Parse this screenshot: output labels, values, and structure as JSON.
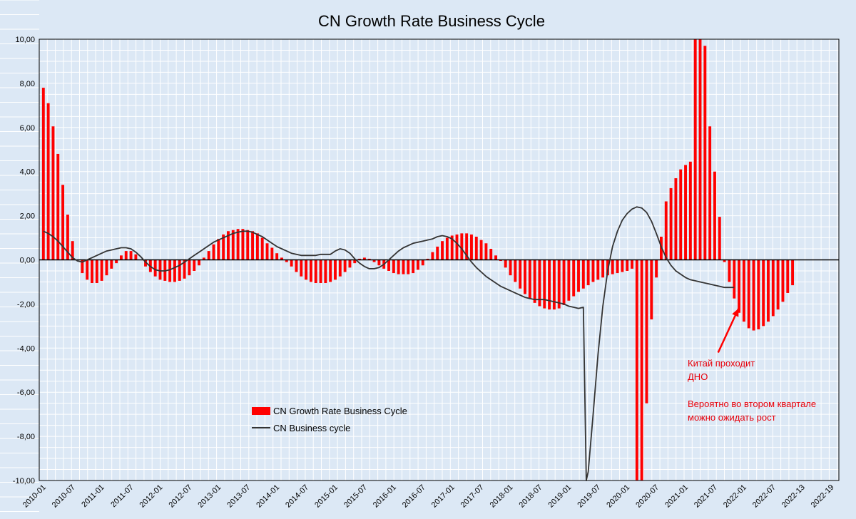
{
  "chart_data": {
    "type": "bar",
    "title": "CN Growth Rate Business Cycle",
    "xlabel": "",
    "ylabel": "",
    "ylim": [
      -10,
      10
    ],
    "yticks": [
      10,
      8,
      6,
      4,
      2,
      0,
      -2,
      -4,
      -6,
      -8,
      -10
    ],
    "ytick_labels": [
      "10,00",
      "8,00",
      "6,00",
      "4,00",
      "2,00",
      "0,00",
      "-2,00",
      "-4,00",
      "-6,00",
      "-8,00",
      "-10,00"
    ],
    "grid": true,
    "x_tick_labels": [
      "2010-01",
      "2010-07",
      "2011-01",
      "2011-07",
      "2012-01",
      "2012-07",
      "2013-01",
      "2013-07",
      "2014-01",
      "2014-07",
      "2015-01",
      "2015-07",
      "2016-01",
      "2016-07",
      "2017-01",
      "2017-07",
      "2018-01",
      "2018-07",
      "2019-01",
      "2019-07",
      "2020-01",
      "2020-07",
      "2021-01",
      "2021-07",
      "2022-01",
      "2022-07",
      "2022-13",
      "2022-19"
    ],
    "series": [
      {
        "name": "CN Growth Rate Business Cycle",
        "kind": "bar",
        "color": "#ff0000",
        "values": [
          7.8,
          7.1,
          6.05,
          4.8,
          3.4,
          2.05,
          0.85,
          0.0,
          -0.6,
          -0.9,
          -1.05,
          -1.05,
          -0.95,
          -0.7,
          -0.4,
          -0.15,
          0.2,
          0.4,
          0.4,
          0.25,
          0.0,
          -0.3,
          -0.55,
          -0.75,
          -0.9,
          -0.95,
          -1.0,
          -1.0,
          -0.95,
          -0.85,
          -0.7,
          -0.5,
          -0.25,
          0.1,
          0.4,
          0.7,
          0.95,
          1.15,
          1.3,
          1.35,
          1.4,
          1.4,
          1.35,
          1.3,
          1.2,
          1.0,
          0.75,
          0.55,
          0.3,
          0.1,
          -0.1,
          -0.3,
          -0.55,
          -0.75,
          -0.9,
          -1.0,
          -1.05,
          -1.05,
          -1.05,
          -1.0,
          -0.9,
          -0.75,
          -0.55,
          -0.35,
          -0.15,
          0.05,
          0.1,
          0.05,
          -0.1,
          -0.25,
          -0.4,
          -0.5,
          -0.6,
          -0.65,
          -0.65,
          -0.65,
          -0.6,
          -0.45,
          -0.25,
          0.05,
          0.35,
          0.6,
          0.85,
          1.0,
          1.1,
          1.15,
          1.2,
          1.2,
          1.15,
          1.05,
          0.9,
          0.75,
          0.5,
          0.2,
          -0.05,
          -0.35,
          -0.7,
          -1.0,
          -1.3,
          -1.55,
          -1.75,
          -1.95,
          -2.1,
          -2.2,
          -2.25,
          -2.25,
          -2.2,
          -2.05,
          -1.85,
          -1.65,
          -1.45,
          -1.3,
          -1.15,
          -1.0,
          -0.9,
          -0.8,
          -0.7,
          -0.65,
          -0.6,
          -0.55,
          -0.5,
          -0.4,
          -10.0,
          -10.0,
          -6.5,
          -2.7,
          -0.8,
          1.05,
          2.65,
          3.25,
          3.7,
          4.1,
          4.3,
          4.45,
          10.0,
          10.0,
          9.7,
          6.05,
          4.0,
          1.95,
          -0.1,
          -1.0,
          -1.75,
          -2.4,
          -2.8,
          -3.1,
          -3.2,
          -3.15,
          -3.0,
          -2.8,
          -2.55,
          -2.25,
          -1.9,
          -1.5,
          -1.15
        ],
        "categories_start": "2010-01",
        "step": "month"
      },
      {
        "name": "CN Business cycle",
        "kind": "line",
        "color": "#333333",
        "points": [
          [
            0,
            1.3
          ],
          [
            1,
            1.2
          ],
          [
            2,
            1.05
          ],
          [
            3,
            0.85
          ],
          [
            4,
            0.6
          ],
          [
            5,
            0.35
          ],
          [
            6,
            0.1
          ],
          [
            7,
            -0.05
          ],
          [
            8,
            -0.1
          ],
          [
            9,
            0.0
          ],
          [
            10,
            0.1
          ],
          [
            11,
            0.2
          ],
          [
            12,
            0.3
          ],
          [
            13,
            0.4
          ],
          [
            14,
            0.45
          ],
          [
            15,
            0.5
          ],
          [
            16,
            0.55
          ],
          [
            17,
            0.55
          ],
          [
            18,
            0.5
          ],
          [
            19,
            0.35
          ],
          [
            20,
            0.15
          ],
          [
            21,
            -0.1
          ],
          [
            22,
            -0.3
          ],
          [
            23,
            -0.45
          ],
          [
            24,
            -0.5
          ],
          [
            25,
            -0.5
          ],
          [
            26,
            -0.45
          ],
          [
            27,
            -0.35
          ],
          [
            28,
            -0.25
          ],
          [
            29,
            -0.1
          ],
          [
            30,
            0.05
          ],
          [
            31,
            0.2
          ],
          [
            32,
            0.35
          ],
          [
            33,
            0.5
          ],
          [
            34,
            0.65
          ],
          [
            35,
            0.8
          ],
          [
            36,
            0.9
          ],
          [
            37,
            1.0
          ],
          [
            38,
            1.1
          ],
          [
            39,
            1.2
          ],
          [
            40,
            1.25
          ],
          [
            41,
            1.3
          ],
          [
            42,
            1.3
          ],
          [
            43,
            1.25
          ],
          [
            44,
            1.15
          ],
          [
            45,
            1.05
          ],
          [
            46,
            0.9
          ],
          [
            47,
            0.75
          ],
          [
            48,
            0.6
          ],
          [
            49,
            0.5
          ],
          [
            50,
            0.4
          ],
          [
            51,
            0.3
          ],
          [
            52,
            0.25
          ],
          [
            53,
            0.2
          ],
          [
            54,
            0.2
          ],
          [
            55,
            0.2
          ],
          [
            56,
            0.2
          ],
          [
            57,
            0.25
          ],
          [
            58,
            0.25
          ],
          [
            59,
            0.25
          ],
          [
            60,
            0.4
          ],
          [
            61,
            0.5
          ],
          [
            62,
            0.45
          ],
          [
            63,
            0.3
          ],
          [
            64,
            0.05
          ],
          [
            65,
            -0.15
          ],
          [
            66,
            -0.3
          ],
          [
            67,
            -0.4
          ],
          [
            68,
            -0.4
          ],
          [
            69,
            -0.35
          ],
          [
            70,
            -0.2
          ],
          [
            71,
            0.0
          ],
          [
            72,
            0.2
          ],
          [
            73,
            0.4
          ],
          [
            74,
            0.55
          ],
          [
            75,
            0.65
          ],
          [
            76,
            0.75
          ],
          [
            77,
            0.8
          ],
          [
            78,
            0.85
          ],
          [
            79,
            0.9
          ],
          [
            80,
            0.95
          ],
          [
            81,
            1.05
          ],
          [
            82,
            1.1
          ],
          [
            83,
            1.05
          ],
          [
            84,
            0.95
          ],
          [
            85,
            0.75
          ],
          [
            86,
            0.5
          ],
          [
            87,
            0.2
          ],
          [
            88,
            -0.1
          ],
          [
            89,
            -0.35
          ],
          [
            90,
            -0.55
          ],
          [
            91,
            -0.75
          ],
          [
            92,
            -0.9
          ],
          [
            93,
            -1.05
          ],
          [
            94,
            -1.2
          ],
          [
            95,
            -1.3
          ],
          [
            96,
            -1.4
          ],
          [
            97,
            -1.5
          ],
          [
            98,
            -1.6
          ],
          [
            99,
            -1.7
          ],
          [
            100,
            -1.75
          ],
          [
            101,
            -1.8
          ],
          [
            102,
            -1.8
          ],
          [
            103,
            -1.8
          ],
          [
            104,
            -1.85
          ],
          [
            105,
            -1.9
          ],
          [
            106,
            -1.95
          ],
          [
            107,
            -2.0
          ],
          [
            108,
            -2.1
          ],
          [
            109,
            -2.15
          ],
          [
            110,
            -2.2
          ],
          [
            111,
            -2.15
          ],
          [
            111.6,
            -10.0
          ],
          [
            112,
            -9.6
          ],
          [
            113,
            -7.0
          ],
          [
            114,
            -4.3
          ],
          [
            115,
            -2.1
          ],
          [
            116,
            -0.5
          ],
          [
            117,
            0.6
          ],
          [
            118,
            1.3
          ],
          [
            119,
            1.8
          ],
          [
            120,
            2.1
          ],
          [
            121,
            2.3
          ],
          [
            122,
            2.4
          ],
          [
            123,
            2.35
          ],
          [
            124,
            2.15
          ],
          [
            125,
            1.75
          ],
          [
            126,
            1.2
          ],
          [
            127,
            0.6
          ],
          [
            128,
            0.1
          ],
          [
            129,
            -0.25
          ],
          [
            130,
            -0.5
          ],
          [
            131,
            -0.65
          ],
          [
            132,
            -0.8
          ],
          [
            133,
            -0.9
          ],
          [
            134,
            -0.95
          ],
          [
            135,
            -1.0
          ],
          [
            136,
            -1.05
          ],
          [
            137,
            -1.1
          ],
          [
            138,
            -1.15
          ],
          [
            139,
            -1.2
          ],
          [
            140,
            -1.25
          ],
          [
            141,
            -1.25
          ],
          [
            142,
            -1.25
          ]
        ]
      }
    ],
    "legend": {
      "placement": "lower-left",
      "entries": [
        "CN Growth Rate Business Cycle",
        "CN Business cycle"
      ]
    },
    "annotations": {
      "text_lines": [
        "Китай проходит",
        "ДНО",
        "",
        "Вероятно во втором квартале",
        "можно ожидать рост"
      ],
      "color": "#e8000a",
      "arrow": {
        "from": [
          138.7,
          -4.2
        ],
        "to": [
          142.9,
          -2.2
        ],
        "color": "#ff0000"
      }
    },
    "colors": {
      "plot_background": "#dce8f5",
      "frame": "#000000",
      "grid": "#ffffff"
    }
  }
}
